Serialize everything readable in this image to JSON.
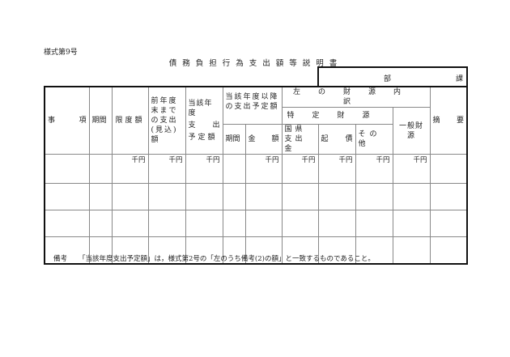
{
  "form_number": "様式第9号",
  "title": "債務負担行為支出額等説明書",
  "dept": {
    "bu": "部",
    "ka": "課"
  },
  "headers": {
    "jiko": [
      "事",
      "項"
    ],
    "kikan": "期間",
    "gendo": "限度額",
    "zennendo": "前年度末までの支出(見込)額",
    "tougai": [
      "当該年度",
      "支",
      "出",
      "予定額"
    ],
    "irai": "当該年度以降の支出予定額",
    "zaigen": "左の財源内訳",
    "tokutei": "特定財源",
    "ippan": "一般財源",
    "tekiyo": [
      "摘",
      "要"
    ],
    "irai_kikan": "期間",
    "kingaku": [
      "金",
      "額"
    ],
    "kokuken": "国県支出金",
    "kisai": [
      "起",
      "債"
    ],
    "sonota": "その他"
  },
  "unit": "千円",
  "note": {
    "label": "備考",
    "text": "「当該年度支出予定額」は，様式第2号の「左のうち備考(2)の額」と一致するものであること。"
  }
}
